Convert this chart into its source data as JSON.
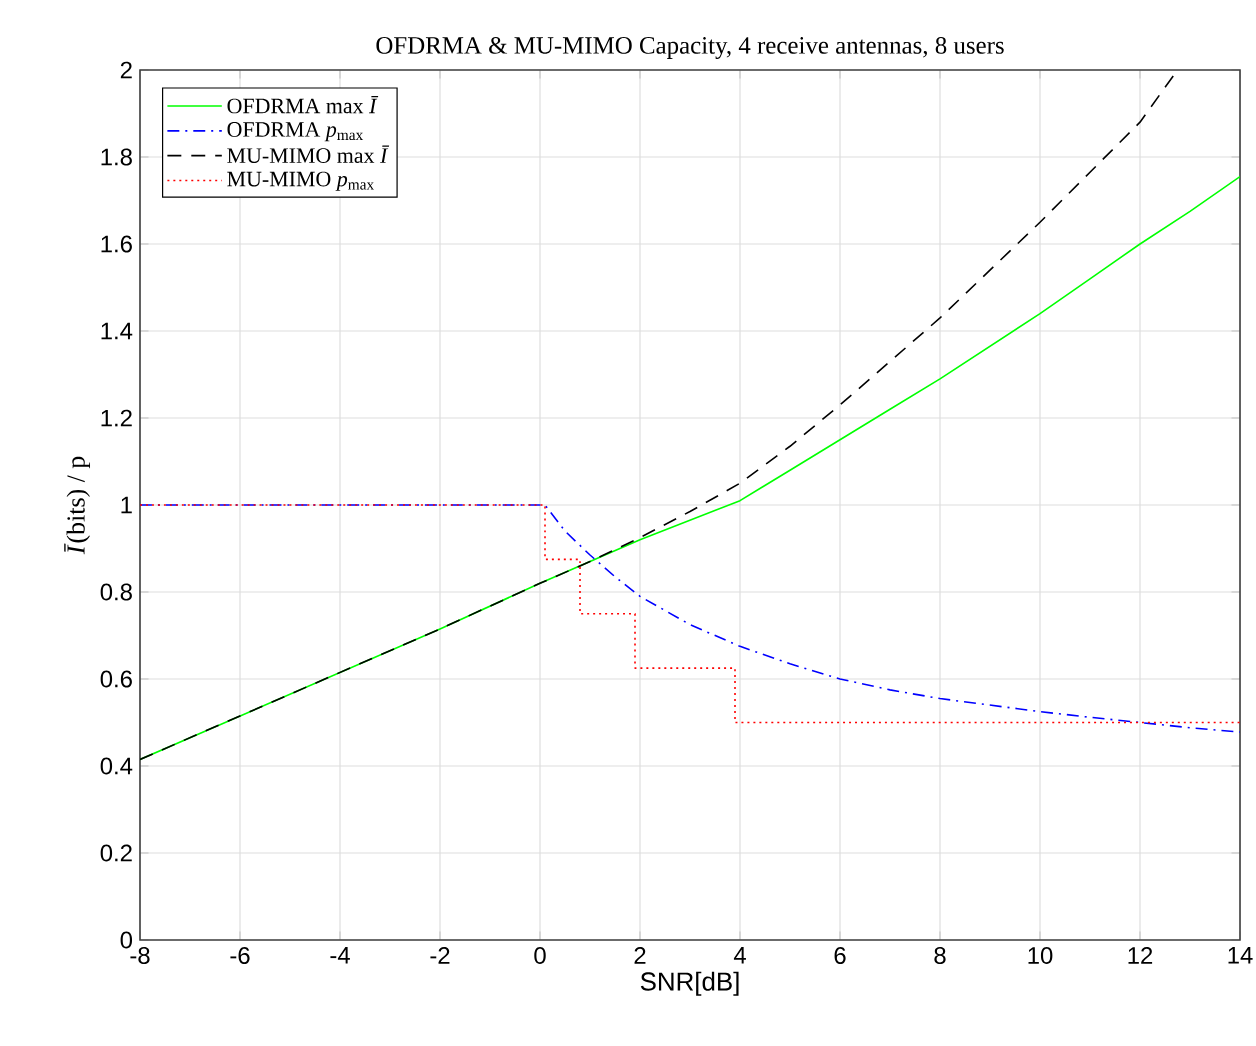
{
  "chart_data": {
    "type": "line",
    "title": "OFDRMA & MU-MIMO Capacity, 4 receive antennas, 8 users",
    "xlabel": "SNR[dB]",
    "ylabel": "*Ī*(bits) / p",
    "xlim": [
      -8,
      14
    ],
    "ylim": [
      0,
      2
    ],
    "xticks": [
      -8,
      -6,
      -4,
      -2,
      0,
      2,
      4,
      6,
      8,
      10,
      12,
      14
    ],
    "yticks": [
      0,
      0.2,
      0.4,
      0.6,
      0.8,
      1,
      1.2,
      1.4,
      1.6,
      1.8,
      2
    ],
    "grid": true,
    "legend": "top left",
    "series": [
      {
        "name": "OFDRMA max *Ī*",
        "color": "#00ff00",
        "line_style": "solid",
        "x": [
          -8,
          -6,
          -4,
          -2,
          0,
          1,
          2,
          3,
          4,
          5,
          6,
          7,
          8,
          9,
          10,
          11,
          12,
          13,
          14
        ],
        "values": [
          0.415,
          0.515,
          0.615,
          0.715,
          0.82,
          0.87,
          0.92,
          0.965,
          1.01,
          1.08,
          1.15,
          1.22,
          1.29,
          1.365,
          1.44,
          1.52,
          1.6,
          1.675,
          1.755
        ]
      },
      {
        "name": "OFDRMA *p*$_{max}$",
        "color": "#0000ff",
        "line_style": "dashdot",
        "x": [
          -8,
          -4,
          0,
          0.1,
          0.5,
          1,
          1.5,
          2,
          3,
          4,
          5,
          6,
          7,
          8,
          9,
          10,
          11,
          12,
          13,
          14
        ],
        "values": [
          1,
          1,
          1,
          1,
          0.94,
          0.885,
          0.835,
          0.79,
          0.725,
          0.675,
          0.635,
          0.6,
          0.575,
          0.555,
          0.54,
          0.525,
          0.512,
          0.5,
          0.488,
          0.478
        ]
      },
      {
        "name": "MU-MIMO max *Ī*",
        "color": "#000000",
        "line_style": "dashed",
        "x": [
          -8,
          -6,
          -4,
          -2,
          0,
          1,
          2,
          3,
          4,
          5,
          6,
          7,
          8,
          9,
          10,
          11,
          12,
          12.75
        ],
        "values": [
          0.415,
          0.515,
          0.615,
          0.715,
          0.82,
          0.87,
          0.925,
          0.985,
          1.05,
          1.135,
          1.23,
          1.33,
          1.43,
          1.54,
          1.65,
          1.765,
          1.88,
          2
        ]
      },
      {
        "name": "MU-MIMO *p*$_{max}$",
        "color": "#ff0000",
        "type": "step",
        "line_style": "dotted",
        "x": [
          -8,
          0.1,
          0.8,
          1.9,
          3.9,
          14
        ],
        "values": [
          1,
          0.875,
          0.75,
          0.625,
          0.5,
          0.5
        ]
      }
    ]
  }
}
